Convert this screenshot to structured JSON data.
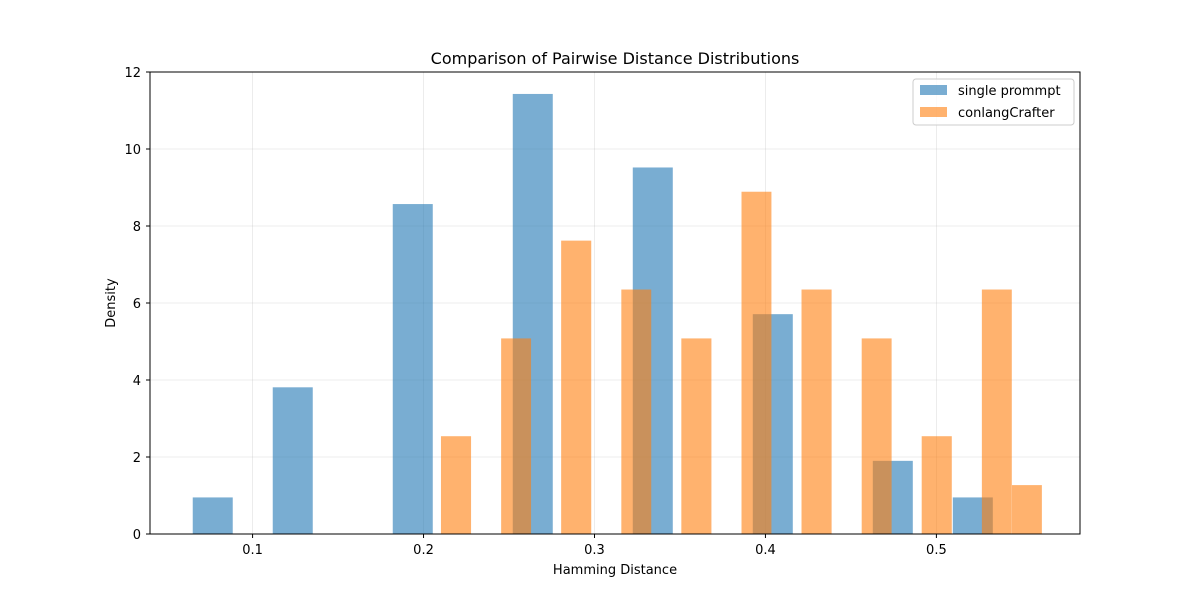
{
  "chart_data": {
    "type": "bar",
    "title": "Comparison of Pairwise Distance Distributions",
    "xlabel": "Hamming Distance",
    "ylabel": "Density",
    "xlim": [
      0.04,
      0.584
    ],
    "ylim": [
      0,
      12
    ],
    "xticks": [
      0.1,
      0.2,
      0.3,
      0.4,
      0.5
    ],
    "xtick_labels": [
      "0.1",
      "0.2",
      "0.3",
      "0.4",
      "0.5"
    ],
    "yticks": [
      0,
      2,
      4,
      6,
      8,
      10,
      12
    ],
    "ytick_labels": [
      "0",
      "2",
      "4",
      "6",
      "8",
      "10",
      "12"
    ],
    "grid": true,
    "legend_position": "top-right",
    "series": [
      {
        "name": "single prommpt",
        "color": "#1f77b4",
        "opacity": 0.6,
        "bars": [
          {
            "x0": 0.065,
            "x1": 0.0884,
            "value": 0.95
          },
          {
            "x0": 0.1118,
            "x1": 0.1352,
            "value": 3.81
          },
          {
            "x0": 0.182,
            "x1": 0.2054,
            "value": 8.57
          },
          {
            "x0": 0.2522,
            "x1": 0.2756,
            "value": 11.43
          },
          {
            "x0": 0.3224,
            "x1": 0.3458,
            "value": 9.52
          },
          {
            "x0": 0.3926,
            "x1": 0.416,
            "value": 5.71
          },
          {
            "x0": 0.4628,
            "x1": 0.4862,
            "value": 1.9
          },
          {
            "x0": 0.5096,
            "x1": 0.533,
            "value": 0.95
          }
        ]
      },
      {
        "name": "conlangCrafter",
        "color": "#ff7f0e",
        "opacity": 0.6,
        "bars": [
          {
            "x0": 0.2102,
            "x1": 0.2278,
            "value": 2.54
          },
          {
            "x0": 0.2454,
            "x1": 0.2629,
            "value": 5.08
          },
          {
            "x0": 0.2805,
            "x1": 0.2981,
            "value": 7.62
          },
          {
            "x0": 0.3157,
            "x1": 0.3332,
            "value": 6.35
          },
          {
            "x0": 0.3508,
            "x1": 0.3684,
            "value": 5.08
          },
          {
            "x0": 0.386,
            "x1": 0.4035,
            "value": 8.89
          },
          {
            "x0": 0.4211,
            "x1": 0.4387,
            "value": 6.35
          },
          {
            "x0": 0.4563,
            "x1": 0.4738,
            "value": 5.08
          },
          {
            "x0": 0.4914,
            "x1": 0.509,
            "value": 2.54
          },
          {
            "x0": 0.5266,
            "x1": 0.5441,
            "value": 6.35
          },
          {
            "x0": 0.5442,
            "x1": 0.5617,
            "value": 1.27
          }
        ]
      }
    ]
  }
}
